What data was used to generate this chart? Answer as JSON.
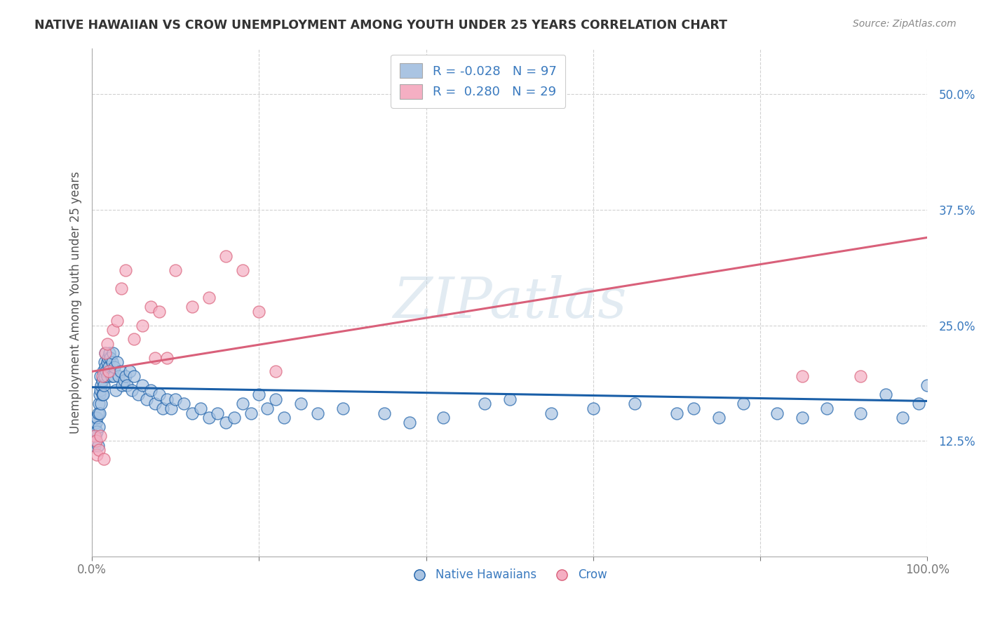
{
  "title": "NATIVE HAWAIIAN VS CROW UNEMPLOYMENT AMONG YOUTH UNDER 25 YEARS CORRELATION CHART",
  "source": "Source: ZipAtlas.com",
  "ylabel": "Unemployment Among Youth under 25 years",
  "yticks_labels": [
    "50.0%",
    "37.5%",
    "25.0%",
    "12.5%"
  ],
  "ytick_vals": [
    0.5,
    0.375,
    0.25,
    0.125
  ],
  "xlim": [
    0.0,
    1.0
  ],
  "ylim": [
    0.0,
    0.55
  ],
  "color_blue": "#aac4e2",
  "color_pink": "#f5afc3",
  "line_blue": "#1a5fa8",
  "line_pink": "#d9607a",
  "grid_color": "#cccccc",
  "background": "#ffffff",
  "nh_x": [
    0.002,
    0.003,
    0.003,
    0.004,
    0.004,
    0.005,
    0.005,
    0.006,
    0.006,
    0.007,
    0.007,
    0.008,
    0.008,
    0.009,
    0.009,
    0.01,
    0.01,
    0.011,
    0.011,
    0.012,
    0.012,
    0.013,
    0.013,
    0.014,
    0.015,
    0.015,
    0.016,
    0.016,
    0.017,
    0.018,
    0.018,
    0.019,
    0.02,
    0.021,
    0.022,
    0.023,
    0.024,
    0.025,
    0.026,
    0.027,
    0.028,
    0.03,
    0.032,
    0.034,
    0.036,
    0.038,
    0.04,
    0.042,
    0.045,
    0.048,
    0.05,
    0.055,
    0.06,
    0.065,
    0.07,
    0.075,
    0.08,
    0.085,
    0.09,
    0.095,
    0.1,
    0.11,
    0.12,
    0.13,
    0.14,
    0.15,
    0.16,
    0.17,
    0.18,
    0.19,
    0.2,
    0.21,
    0.22,
    0.23,
    0.25,
    0.27,
    0.3,
    0.35,
    0.38,
    0.42,
    0.47,
    0.5,
    0.55,
    0.6,
    0.65,
    0.7,
    0.72,
    0.75,
    0.78,
    0.82,
    0.85,
    0.88,
    0.92,
    0.95,
    0.97,
    0.99,
    1.0
  ],
  "nh_y": [
    0.13,
    0.14,
    0.12,
    0.15,
    0.13,
    0.125,
    0.145,
    0.135,
    0.15,
    0.12,
    0.155,
    0.165,
    0.14,
    0.175,
    0.155,
    0.18,
    0.195,
    0.165,
    0.185,
    0.175,
    0.19,
    0.2,
    0.175,
    0.185,
    0.21,
    0.195,
    0.205,
    0.22,
    0.2,
    0.21,
    0.195,
    0.215,
    0.205,
    0.22,
    0.215,
    0.195,
    0.21,
    0.22,
    0.195,
    0.205,
    0.18,
    0.21,
    0.195,
    0.2,
    0.185,
    0.19,
    0.195,
    0.185,
    0.2,
    0.18,
    0.195,
    0.175,
    0.185,
    0.17,
    0.18,
    0.165,
    0.175,
    0.16,
    0.17,
    0.16,
    0.17,
    0.165,
    0.155,
    0.16,
    0.15,
    0.155,
    0.145,
    0.15,
    0.165,
    0.155,
    0.175,
    0.16,
    0.17,
    0.15,
    0.165,
    0.155,
    0.16,
    0.155,
    0.145,
    0.15,
    0.165,
    0.17,
    0.155,
    0.16,
    0.165,
    0.155,
    0.16,
    0.15,
    0.165,
    0.155,
    0.15,
    0.16,
    0.155,
    0.175,
    0.15,
    0.165,
    0.185
  ],
  "crow_x": [
    0.003,
    0.005,
    0.006,
    0.008,
    0.01,
    0.012,
    0.014,
    0.016,
    0.018,
    0.02,
    0.025,
    0.03,
    0.035,
    0.04,
    0.05,
    0.06,
    0.07,
    0.075,
    0.08,
    0.09,
    0.1,
    0.12,
    0.14,
    0.16,
    0.18,
    0.2,
    0.22,
    0.85,
    0.92
  ],
  "crow_y": [
    0.13,
    0.125,
    0.11,
    0.115,
    0.13,
    0.195,
    0.105,
    0.22,
    0.23,
    0.2,
    0.245,
    0.255,
    0.29,
    0.31,
    0.235,
    0.25,
    0.27,
    0.215,
    0.265,
    0.215,
    0.31,
    0.27,
    0.28,
    0.325,
    0.31,
    0.265,
    0.2,
    0.195,
    0.195
  ],
  "blue_line_x": [
    0.0,
    1.0
  ],
  "blue_line_y": [
    0.183,
    0.168
  ],
  "pink_line_x": [
    0.0,
    1.0
  ],
  "pink_line_y": [
    0.2,
    0.345
  ]
}
